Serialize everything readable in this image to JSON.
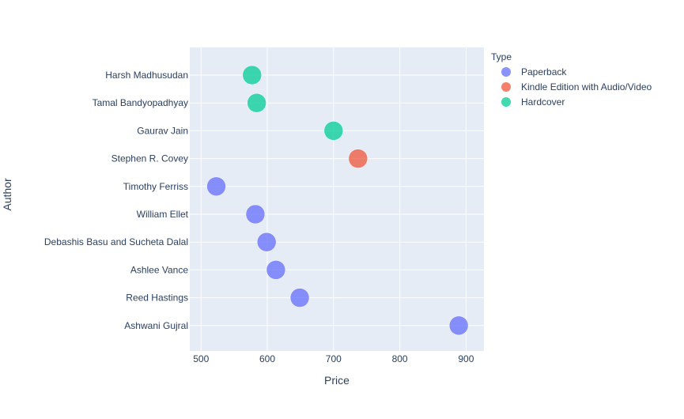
{
  "chart_data": {
    "type": "scatter",
    "title": "",
    "xlabel": "Price",
    "ylabel": "Author",
    "xlim": [
      483,
      927
    ],
    "xticks": [
      500,
      600,
      700,
      800,
      900
    ],
    "grid": true,
    "legend_position": "top-right",
    "legend_title": "Type",
    "categories": [
      "Harsh Madhusudan",
      "Tamal Bandyopadhyay",
      "Gaurav Jain",
      "Stephen R. Covey",
      "Timothy Ferriss",
      "William Ellet",
      "Debashis Basu and Sucheta Dalal",
      "Ashlee Vance",
      "Reed Hastings",
      "Ashwani Gujral"
    ],
    "series": [
      {
        "name": "Paperback",
        "color": "#636efa",
        "points": [
          {
            "author": "Timothy Ferriss",
            "price": 523
          },
          {
            "author": "William Ellet",
            "price": 582
          },
          {
            "author": "Debashis Basu and Sucheta Dalal",
            "price": 599
          },
          {
            "author": "Ashlee Vance",
            "price": 613
          },
          {
            "author": "Reed Hastings",
            "price": 649
          },
          {
            "author": "Ashwani Gujral",
            "price": 889
          }
        ]
      },
      {
        "name": "Kindle Edition with Audio/Video",
        "color": "#ef553b",
        "points": [
          {
            "author": "Stephen R. Covey",
            "price": 737
          }
        ]
      },
      {
        "name": "Hardcover",
        "color": "#00cc96",
        "points": [
          {
            "author": "Harsh Madhusudan",
            "price": 577
          },
          {
            "author": "Tamal Bandyopadhyay",
            "price": 584
          },
          {
            "author": "Gaurav Jain",
            "price": 700
          }
        ]
      }
    ]
  },
  "colors": {
    "plot_background": "#e5ecf6",
    "grid": "#ffffff",
    "text": "#2a3f5f"
  }
}
